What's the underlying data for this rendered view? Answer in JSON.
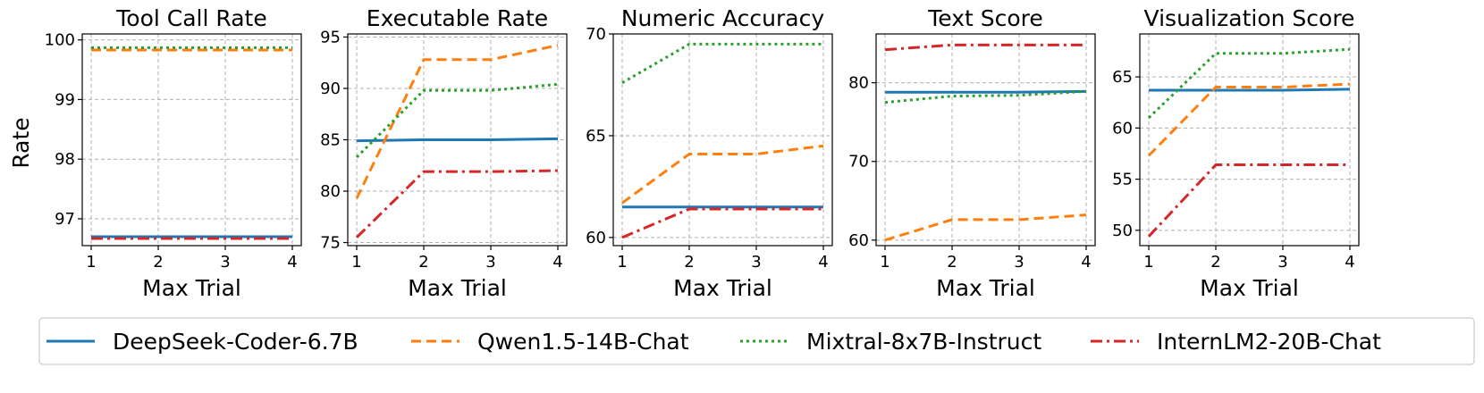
{
  "figure": {
    "ylabel": "Rate",
    "xlabel": "Max Trial"
  },
  "legend": {
    "placement": "bottom",
    "entries": [
      {
        "label": "DeepSeek-Coder-6.7B",
        "color": "#1f77b4",
        "dash": "solid"
      },
      {
        "label": "Qwen1.5-14B-Chat",
        "color": "#ff7f0e",
        "dash": "dashed"
      },
      {
        "label": "Mixtral-8x7B-Instruct",
        "color": "#2ca02c",
        "dash": "dotted"
      },
      {
        "label": "InternLM2-20B-Chat",
        "color": "#d62728",
        "dash": "dashdot"
      }
    ]
  },
  "chart_data": [
    {
      "type": "line",
      "title": "Tool Call Rate",
      "xlabel": "Max Trial",
      "ylabel": "Rate",
      "x": [
        1,
        2,
        3,
        4
      ],
      "ylim": [
        96.55,
        100.1
      ],
      "yticks": [
        97,
        98,
        99,
        100
      ],
      "grid": true,
      "series": [
        {
          "name": "DeepSeek-Coder-6.7B",
          "values": [
            96.7,
            96.7,
            96.7,
            96.7
          ]
        },
        {
          "name": "Qwen1.5-14B-Chat",
          "values": [
            99.83,
            99.83,
            99.83,
            99.83
          ]
        },
        {
          "name": "Mixtral-8x7B-Instruct",
          "values": [
            99.87,
            99.87,
            99.87,
            99.87
          ]
        },
        {
          "name": "InternLM2-20B-Chat",
          "values": [
            96.67,
            96.67,
            96.67,
            96.67
          ]
        }
      ]
    },
    {
      "type": "line",
      "title": "Executable Rate",
      "xlabel": "Max Trial",
      "ylabel": "",
      "x": [
        1,
        2,
        3,
        4
      ],
      "ylim": [
        74.7,
        95.3
      ],
      "yticks": [
        75,
        80,
        85,
        90,
        95
      ],
      "grid": true,
      "series": [
        {
          "name": "DeepSeek-Coder-6.7B",
          "values": [
            84.9,
            85.0,
            85.0,
            85.1
          ]
        },
        {
          "name": "Qwen1.5-14B-Chat",
          "values": [
            79.3,
            92.8,
            92.8,
            94.2
          ]
        },
        {
          "name": "Mixtral-8x7B-Instruct",
          "values": [
            83.3,
            89.8,
            89.8,
            90.4
          ]
        },
        {
          "name": "InternLM2-20B-Chat",
          "values": [
            75.5,
            81.9,
            81.9,
            82.0
          ]
        }
      ]
    },
    {
      "type": "line",
      "title": "Numeric Accuracy",
      "xlabel": "Max Trial",
      "ylabel": "",
      "x": [
        1,
        2,
        3,
        4
      ],
      "ylim": [
        59.6,
        70.0
      ],
      "yticks": [
        60,
        65,
        70
      ],
      "grid": true,
      "series": [
        {
          "name": "DeepSeek-Coder-6.7B",
          "values": [
            61.5,
            61.5,
            61.5,
            61.5
          ]
        },
        {
          "name": "Qwen1.5-14B-Chat",
          "values": [
            61.7,
            64.1,
            64.1,
            64.5
          ]
        },
        {
          "name": "Mixtral-8x7B-Instruct",
          "values": [
            67.6,
            69.5,
            69.5,
            69.5
          ]
        },
        {
          "name": "InternLM2-20B-Chat",
          "values": [
            60.0,
            61.4,
            61.4,
            61.4
          ]
        }
      ]
    },
    {
      "type": "line",
      "title": "Text Score",
      "xlabel": "Max Trial",
      "ylabel": "",
      "x": [
        1,
        2,
        3,
        4
      ],
      "ylim": [
        59.3,
        86.2
      ],
      "yticks": [
        60,
        70,
        80
      ],
      "grid": true,
      "series": [
        {
          "name": "DeepSeek-Coder-6.7B",
          "values": [
            78.8,
            78.8,
            78.8,
            78.9
          ]
        },
        {
          "name": "Qwen1.5-14B-Chat",
          "values": [
            60.0,
            62.6,
            62.6,
            63.2
          ]
        },
        {
          "name": "Mixtral-8x7B-Instruct",
          "values": [
            77.5,
            78.3,
            78.4,
            78.9
          ]
        },
        {
          "name": "InternLM2-20B-Chat",
          "values": [
            84.2,
            84.8,
            84.8,
            84.8
          ]
        }
      ]
    },
    {
      "type": "line",
      "title": "Visualization Score",
      "xlabel": "Max Trial",
      "ylabel": "",
      "x": [
        1,
        2,
        3,
        4
      ],
      "ylim": [
        48.5,
        69.2
      ],
      "yticks": [
        50,
        55,
        60,
        65
      ],
      "grid": true,
      "series": [
        {
          "name": "DeepSeek-Coder-6.7B",
          "values": [
            63.7,
            63.7,
            63.7,
            63.8
          ]
        },
        {
          "name": "Qwen1.5-14B-Chat",
          "values": [
            57.3,
            64.0,
            64.0,
            64.3
          ]
        },
        {
          "name": "Mixtral-8x7B-Instruct",
          "values": [
            61.0,
            67.3,
            67.3,
            67.7
          ]
        },
        {
          "name": "InternLM2-20B-Chat",
          "values": [
            49.4,
            56.4,
            56.4,
            56.4
          ]
        }
      ]
    }
  ]
}
